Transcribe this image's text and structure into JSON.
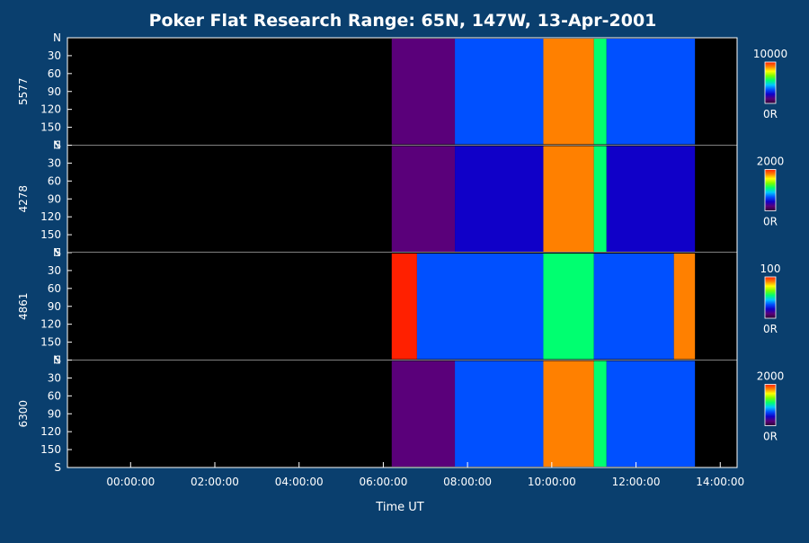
{
  "chart_data": {
    "type": "heatmap",
    "title": "Poker Flat Research Range: 65N, 147W, 13-Apr-2001",
    "xlabel": "Time UT",
    "x_ticks": [
      "00:00:00",
      "02:00:00",
      "04:00:00",
      "06:00:00",
      "08:00:00",
      "10:00:00",
      "12:00:00",
      "14:00:00"
    ],
    "x_tick_hours": [
      0,
      2,
      4,
      6,
      8,
      10,
      12,
      14
    ],
    "xlim_hours": [
      -1.5,
      14.4
    ],
    "y_ticks": [
      "N",
      "30",
      "60",
      "90",
      "120",
      "150",
      "S"
    ],
    "y_tick_values": [
      0,
      30,
      60,
      90,
      120,
      150,
      180
    ],
    "ylim": [
      0,
      180
    ],
    "colorscale": [
      "#2a0030",
      "#5a007a",
      "#1000c8",
      "#0050ff",
      "#00c8ff",
      "#00ff70",
      "#7aff00",
      "#ffff00",
      "#ff8000",
      "#ff2000"
    ],
    "panels": [
      {
        "name": "5577",
        "scale_max": "10000",
        "scale_min": "0R",
        "segments": [
          {
            "start": 6.2,
            "end": 7.7,
            "level": 0.12
          },
          {
            "start": 7.7,
            "end": 9.8,
            "level": 0.35
          },
          {
            "start": 9.8,
            "end": 11.0,
            "level": 0.92
          },
          {
            "start": 11.0,
            "end": 11.3,
            "level": 0.6
          },
          {
            "start": 11.3,
            "end": 13.4,
            "level": 0.3
          }
        ]
      },
      {
        "name": "4278",
        "scale_max": "2000",
        "scale_min": "0R",
        "segments": [
          {
            "start": 6.2,
            "end": 7.7,
            "level": 0.08
          },
          {
            "start": 7.7,
            "end": 9.8,
            "level": 0.25
          },
          {
            "start": 9.8,
            "end": 11.0,
            "level": 0.9
          },
          {
            "start": 11.0,
            "end": 11.3,
            "level": 0.5
          },
          {
            "start": 11.3,
            "end": 13.4,
            "level": 0.22
          }
        ]
      },
      {
        "name": "4861",
        "scale_max": "100",
        "scale_min": "0R",
        "segments": [
          {
            "start": 6.2,
            "end": 6.8,
            "level": 0.95
          },
          {
            "start": 6.8,
            "end": 9.8,
            "level": 0.3
          },
          {
            "start": 9.8,
            "end": 11.0,
            "level": 0.55
          },
          {
            "start": 11.0,
            "end": 12.9,
            "level": 0.35
          },
          {
            "start": 12.9,
            "end": 13.4,
            "level": 0.9
          }
        ]
      },
      {
        "name": "6300",
        "scale_max": "2000",
        "scale_min": "0R",
        "segments": [
          {
            "start": 6.2,
            "end": 7.7,
            "level": 0.12
          },
          {
            "start": 7.7,
            "end": 9.8,
            "level": 0.3
          },
          {
            "start": 9.8,
            "end": 11.0,
            "level": 0.88
          },
          {
            "start": 11.0,
            "end": 11.3,
            "level": 0.55
          },
          {
            "start": 11.3,
            "end": 13.4,
            "level": 0.35
          }
        ]
      }
    ]
  }
}
